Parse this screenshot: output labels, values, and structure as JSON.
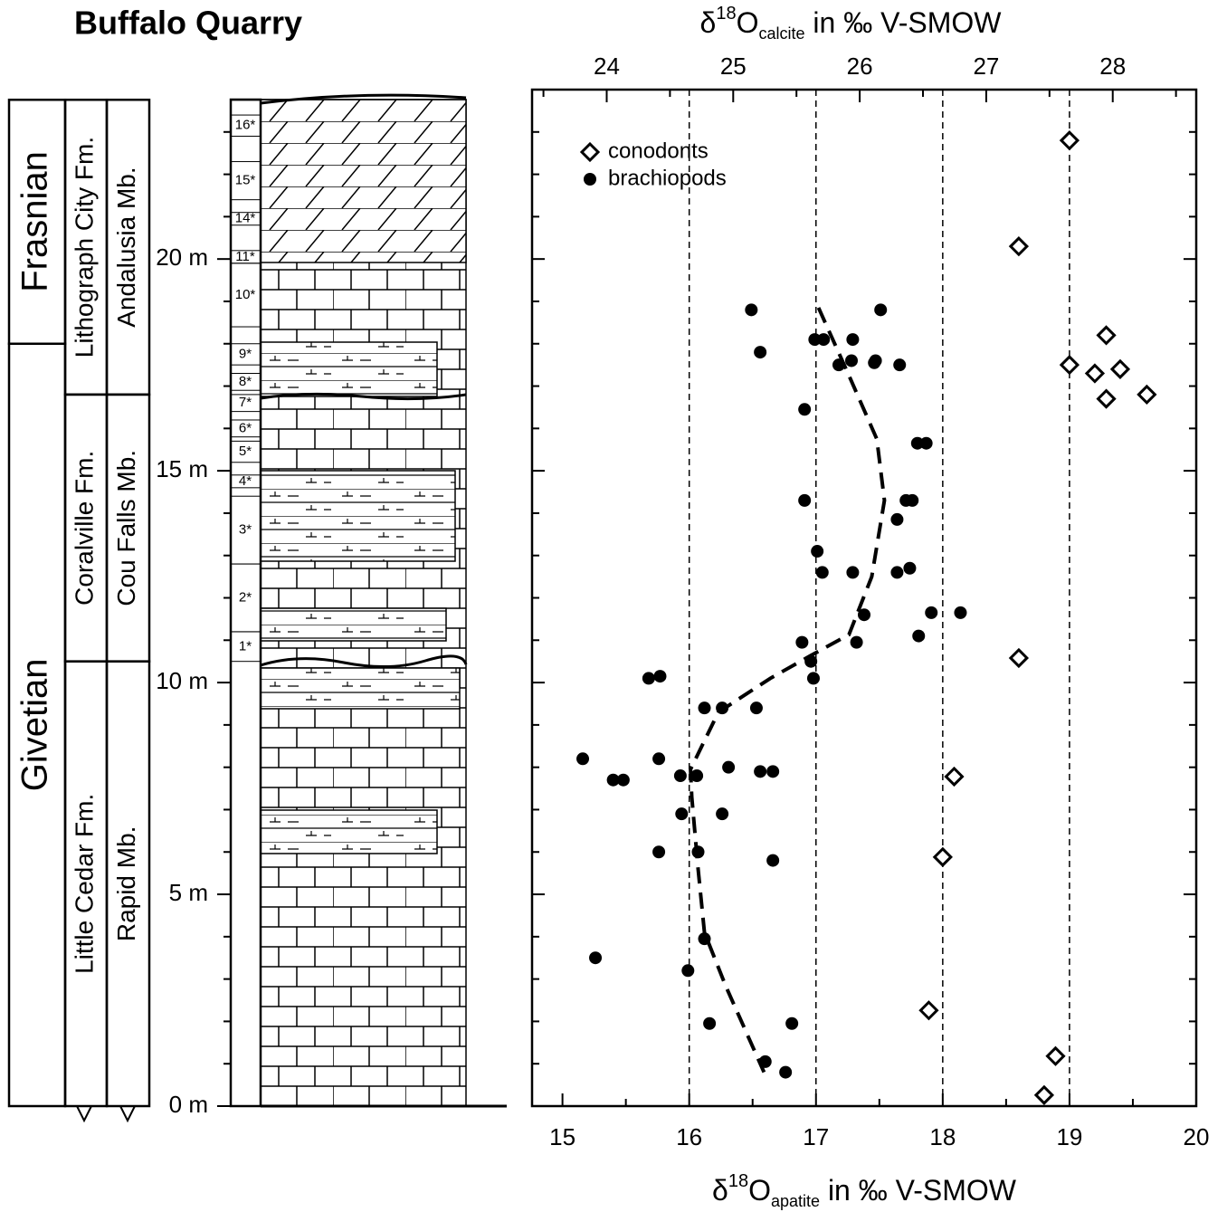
{
  "chart_data": {
    "type": "scatter",
    "title": "Buffalo Quarry",
    "xlabel": {
      "delta": "δ",
      "sup": "18",
      "base": "O",
      "sub": "apatite",
      "rest": " in ‰ V-SMOW"
    },
    "x2label": {
      "delta": "δ",
      "sup": "18",
      "base": "O",
      "sub": "calcite",
      "rest": " in ‰ V-SMOW"
    },
    "xlim": [
      14.76,
      20
    ],
    "xticks": [
      15,
      16,
      17,
      18,
      19,
      20
    ],
    "xminorticks": [
      15.5,
      16.5,
      17.5,
      18.5,
      19.5
    ],
    "x2lim": [
      23.41,
      28.66
    ],
    "x2ticks": [
      24,
      25,
      26,
      27,
      28
    ],
    "x2minorticks": [
      23.5,
      24.5,
      25.5,
      26.5,
      27.5,
      28.5
    ],
    "ylim": [
      0,
      24
    ],
    "yticks": [
      {
        "value": 0,
        "label": "0 m"
      },
      {
        "value": 5,
        "label": "5 m"
      },
      {
        "value": 10,
        "label": "10 m"
      },
      {
        "value": 15,
        "label": "15 m"
      },
      {
        "value": 20,
        "label": "20 m"
      }
    ],
    "yminorticks": [
      1,
      2,
      3,
      4,
      6,
      7,
      8,
      9,
      11,
      12,
      13,
      14,
      16,
      17,
      18,
      19,
      21,
      22,
      23
    ],
    "dashed_x_lines": [
      16,
      17,
      18,
      19
    ],
    "legend": "upper left",
    "series": [
      {
        "name": "conodonts",
        "marker": "diamond",
        "color": "#000000",
        "x": [
          19.0,
          18.6,
          19.29,
          19.0,
          19.2,
          19.4,
          19.29,
          19.61,
          18.6,
          18.09,
          18.0,
          17.89,
          18.89,
          18.8
        ],
        "y": [
          22.8,
          20.3,
          18.2,
          17.5,
          17.3,
          17.4,
          16.7,
          16.8,
          10.58,
          7.78,
          5.88,
          2.26,
          1.18,
          0.26
        ]
      },
      {
        "name": "brachiopods",
        "marker": "dot",
        "color": "#000000",
        "x": [
          16.49,
          16.99,
          17.06,
          17.29,
          16.56,
          17.18,
          17.28,
          17.46,
          17.47,
          17.66,
          17.51,
          16.91,
          17.8,
          17.87,
          16.91,
          17.71,
          17.76,
          17.64,
          17.01,
          17.05,
          17.29,
          17.64,
          17.74,
          17.38,
          17.91,
          18.14,
          17.81,
          16.89,
          17.32,
          16.96,
          16.98,
          15.68,
          15.77,
          16.12,
          16.26,
          16.53,
          15.16,
          15.76,
          15.4,
          15.48,
          15.93,
          16.06,
          16.31,
          16.56,
          16.66,
          15.94,
          16.26,
          15.76,
          16.07,
          16.66,
          16.12,
          15.26,
          15.99,
          16.16,
          16.81,
          16.6,
          16.76
        ],
        "y": [
          18.8,
          18.1,
          18.1,
          18.1,
          17.8,
          17.5,
          17.6,
          17.55,
          17.6,
          17.5,
          18.8,
          16.45,
          15.65,
          15.65,
          14.3,
          14.3,
          14.3,
          13.85,
          13.1,
          12.6,
          12.6,
          12.6,
          12.7,
          11.6,
          11.65,
          11.65,
          11.1,
          10.95,
          10.95,
          10.5,
          10.1,
          10.1,
          10.15,
          9.4,
          9.4,
          9.4,
          8.2,
          8.2,
          7.7,
          7.7,
          7.8,
          7.8,
          8.0,
          7.9,
          7.9,
          6.9,
          6.9,
          6.0,
          6.0,
          5.8,
          3.95,
          3.5,
          3.2,
          1.95,
          1.95,
          1.05,
          0.8
        ]
      }
    ],
    "trend_line": {
      "color": "#000000",
      "x": [
        17.02,
        17.26,
        17.48,
        17.54,
        17.44,
        17.26,
        16.96,
        16.64,
        16.23,
        16.01,
        16.02,
        16.07,
        16.12,
        16.29,
        16.59
      ],
      "y": [
        18.85,
        17.25,
        15.75,
        14.3,
        12.5,
        11.13,
        10.64,
        10.1,
        9.3,
        7.95,
        7.3,
        5.6,
        4.1,
        2.82,
        0.8
      ]
    },
    "stratigraphy": {
      "column_top": 23.76,
      "stages": [
        {
          "label": "Frasnian",
          "base": 18.0,
          "top": 23.76
        },
        {
          "label": "Givetian",
          "base": 0,
          "top": 18.0
        }
      ],
      "formations": [
        {
          "label": "Lithograph City Fm.",
          "base": 16.8,
          "top": 23.76
        },
        {
          "label": "Coralville Fm.",
          "base": 10.5,
          "top": 16.8
        },
        {
          "label": "Little Cedar Fm.",
          "base": 0,
          "top": 10.5
        }
      ],
      "members": [
        {
          "label": "Andalusia Mb.",
          "base": 16.8,
          "top": 23.76
        },
        {
          "label": "Cou Falls Mb.",
          "base": 10.5,
          "top": 16.8
        },
        {
          "label": "Rapid Mb.",
          "base": 0,
          "top": 10.5
        }
      ],
      "units": [
        {
          "label": "16*",
          "base": 22.9,
          "top": 23.4
        },
        {
          "label": "15*",
          "base": 21.4,
          "top": 22.3
        },
        {
          "label": "14*",
          "base": 20.8,
          "top": 21.1
        },
        {
          "label": "11*",
          "base": 19.9,
          "top": 20.2
        },
        {
          "label": "10*",
          "base": 18.4,
          "top": 19.9
        },
        {
          "label": "9*",
          "base": 17.5,
          "top": 18.0
        },
        {
          "label": "8*",
          "base": 16.9,
          "top": 17.3
        },
        {
          "label": "7*",
          "base": 16.4,
          "top": 16.8
        },
        {
          "label": "6*",
          "base": 15.8,
          "top": 16.2
        },
        {
          "label": "5*",
          "base": 15.2,
          "top": 15.7
        },
        {
          "label": "4*",
          "base": 14.6,
          "top": 14.9
        },
        {
          "label": "3*",
          "base": 12.8,
          "top": 14.4
        },
        {
          "label": "2*",
          "base": 11.2,
          "top": 12.8
        },
        {
          "label": "1*",
          "base": 10.5,
          "top": 11.2
        }
      ]
    }
  }
}
